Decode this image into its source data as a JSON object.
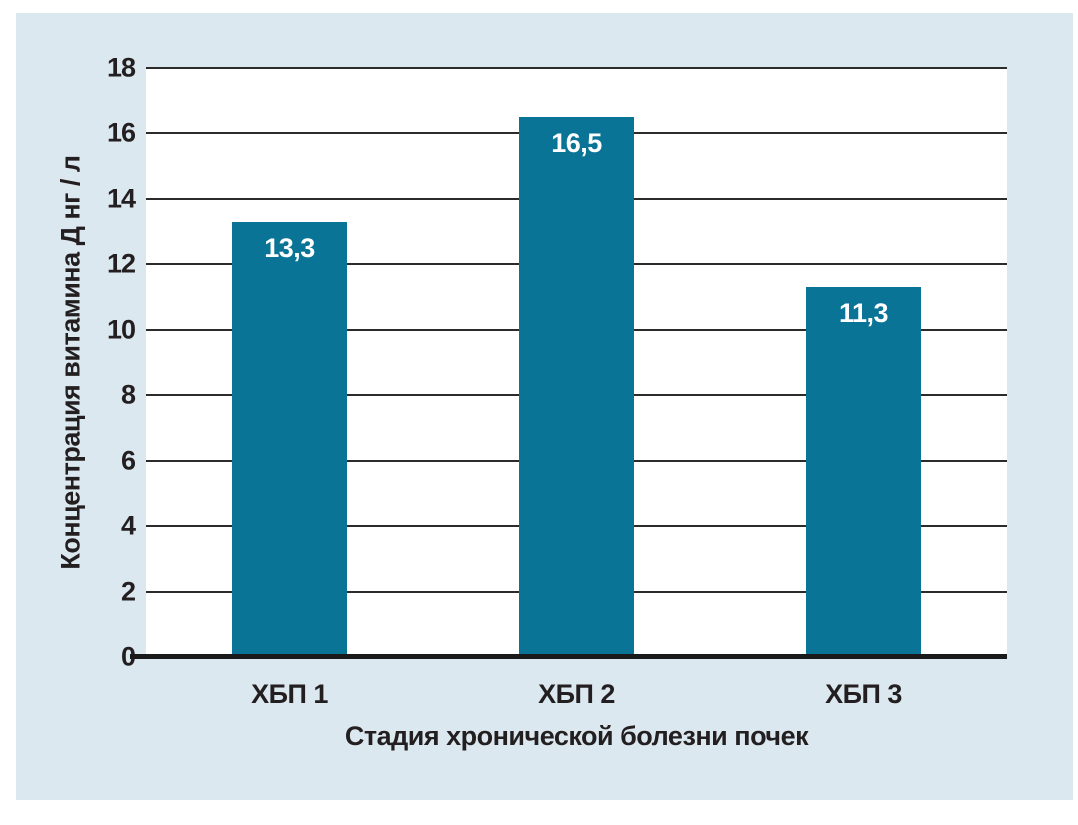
{
  "chart_data": {
    "type": "bar",
    "categories": [
      "ХБП 1",
      "ХБП 2",
      "ХБП 3"
    ],
    "values": [
      13.3,
      16.5,
      11.3
    ],
    "value_labels": [
      "13,3",
      "16,5",
      "11,3"
    ],
    "title": "",
    "xlabel": "Стадия хронической болезни почек",
    "ylabel": "Концентрация витамина Д нг / л",
    "ylim": [
      0,
      18
    ],
    "yticks": [
      0,
      2,
      4,
      6,
      8,
      10,
      12,
      14,
      16,
      18
    ],
    "grid": "horizontal",
    "legend": "none",
    "bar_width_fraction": 0.404
  },
  "colors": {
    "page_background": "#ffffff",
    "panel_background": "#dce8f0",
    "plot_background": "#ffffff",
    "bar_fill": "#0a7496",
    "gridline": "#2b2b2b",
    "axis_line": "#1a1a1a",
    "tick_text": "#231f20",
    "value_label_text": "#ffffff"
  }
}
